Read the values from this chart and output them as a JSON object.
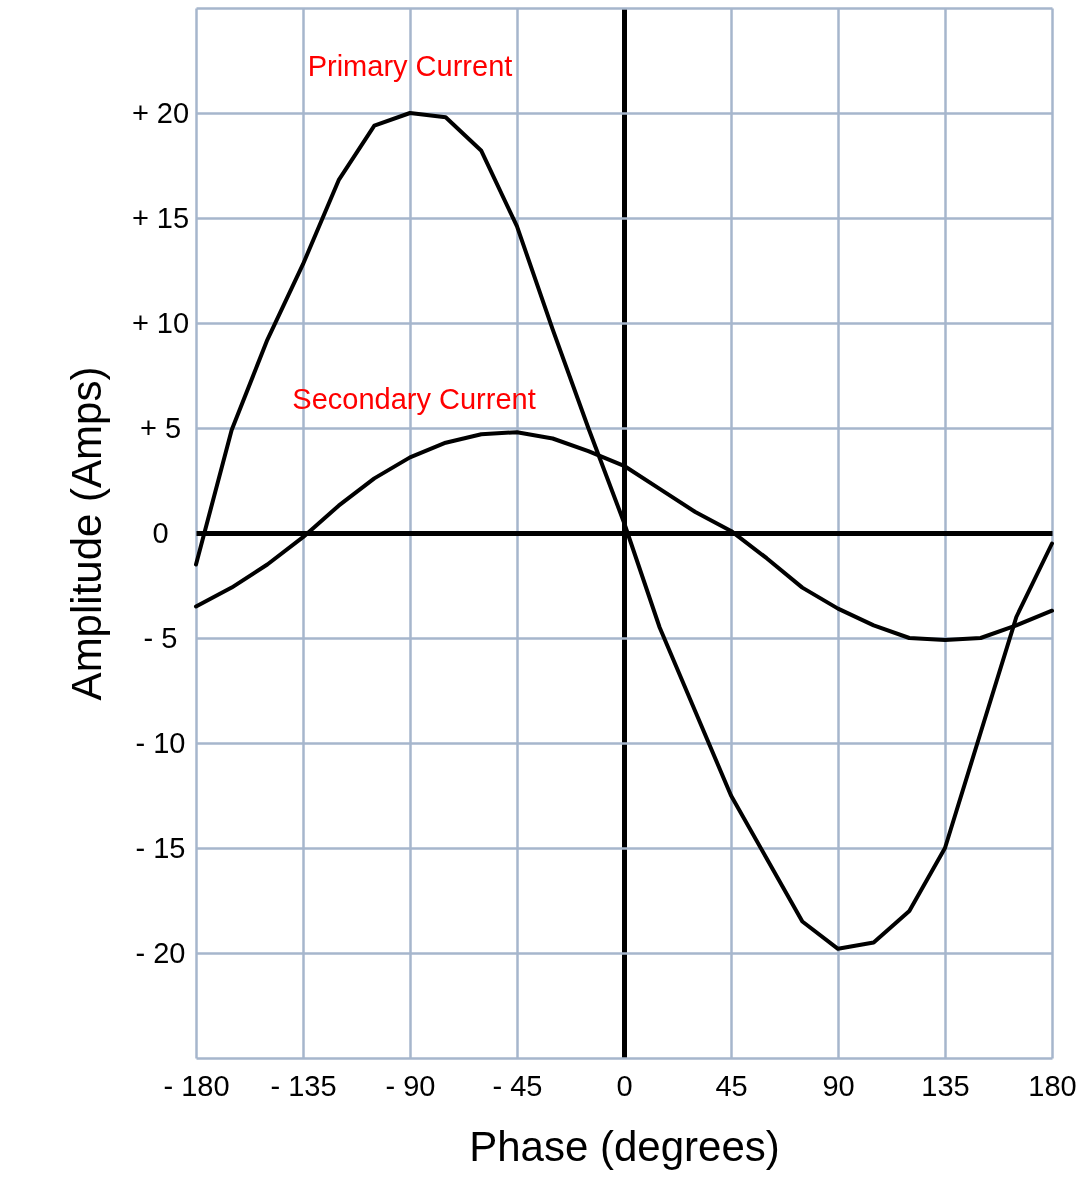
{
  "chart_data": {
    "type": "line",
    "xlabel": "Phase (degrees)",
    "ylabel": "Amplitude (Amps)",
    "x": [
      -180,
      -165,
      -150,
      -135,
      -120,
      -105,
      -90,
      -75,
      -60,
      -45,
      -30,
      -15,
      0,
      15,
      30,
      45,
      60,
      75,
      90,
      105,
      120,
      135,
      150,
      165,
      180
    ],
    "series": [
      {
        "name": "Primary Current",
        "color": "#000000",
        "values": [
          -1.5,
          4.9,
          9.2,
          12.8,
          16.8,
          19.4,
          20,
          19.8,
          18.2,
          14.6,
          9.7,
          5,
          0.5,
          -4.5,
          -8.5,
          -12.5,
          -15.5,
          -18.5,
          -19.8,
          -19.5,
          -18,
          -15,
          -9.5,
          -4,
          -0.5
        ]
      },
      {
        "name": "Secondary Current",
        "color": "#000000",
        "values": [
          -3.5,
          -2.6,
          -1.5,
          -0.2,
          1.3,
          2.6,
          3.6,
          4.3,
          4.7,
          4.8,
          4.5,
          3.9,
          3.2,
          2.1,
          1,
          0.1,
          -1.2,
          -2.6,
          -3.6,
          -4.4,
          -5,
          -5.1,
          -5,
          -4.4,
          -3.7
        ]
      }
    ],
    "xlim": [
      -180,
      180
    ],
    "ylim": [
      -25,
      25
    ],
    "xticks": [
      {
        "value": -180,
        "label": "- 180"
      },
      {
        "value": -135,
        "label": "- 135"
      },
      {
        "value": -90,
        "label": "- 90"
      },
      {
        "value": -45,
        "label": "- 45"
      },
      0,
      45,
      90,
      135,
      180
    ],
    "yticks": [
      {
        "value": -25,
        "label": null
      },
      {
        "value": -20,
        "label": "- 20"
      },
      {
        "value": -15,
        "label": "- 15"
      },
      {
        "value": -10,
        "label": "- 10"
      },
      {
        "value": -5,
        "label": "- 5"
      },
      0,
      {
        "value": 5,
        "label": "+ 5"
      },
      {
        "value": 10,
        "label": "+ 10"
      },
      {
        "value": 15,
        "label": "+ 15"
      },
      {
        "value": 20,
        "label": "+ 20"
      },
      {
        "value": 25,
        "label": null
      }
    ],
    "grid": true,
    "line_style": "solid",
    "marker": "none"
  }
}
